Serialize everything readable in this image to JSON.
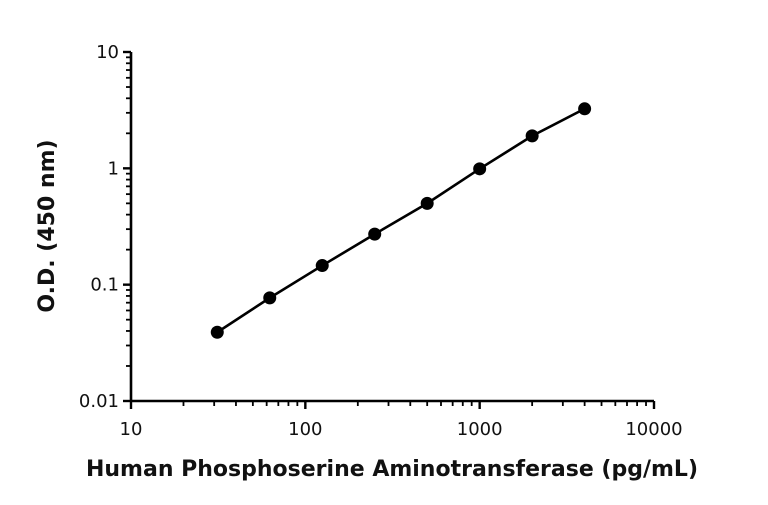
{
  "chart_data": {
    "type": "line",
    "title": "",
    "xlabel": "Human Phosphoserine Aminotransferase (pg/mL)",
    "ylabel": "O.D. (450 nm)",
    "xscale": "log",
    "yscale": "log",
    "xlim": [
      10,
      10000
    ],
    "ylim": [
      0.01,
      10
    ],
    "xticks": [
      10,
      100,
      1000,
      10000
    ],
    "xtick_labels": [
      "10",
      "100",
      "1000",
      "10000"
    ],
    "yticks": [
      0.01,
      0.1,
      1,
      10
    ],
    "ytick_labels": [
      "0.01",
      "0.1",
      "1",
      "10"
    ],
    "grid": false,
    "legend": "none",
    "colors": {
      "series": "#000000",
      "axis": "#000000"
    },
    "series": [
      {
        "x": [
          31.25,
          62.5,
          125,
          250,
          500,
          1000,
          2000,
          4000
        ],
        "y": [
          0.039,
          0.077,
          0.146,
          0.272,
          0.5,
          0.99,
          1.9,
          3.25
        ],
        "marker": "circle",
        "fit": "line"
      }
    ]
  }
}
